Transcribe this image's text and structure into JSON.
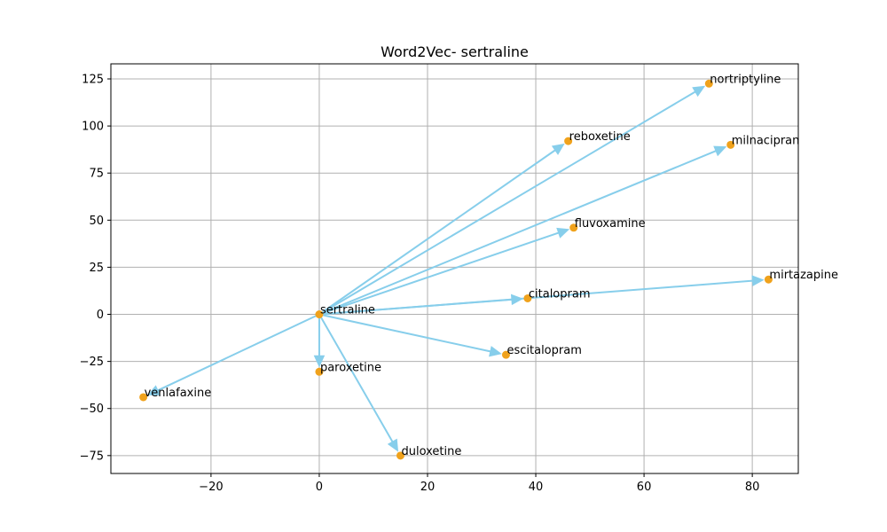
{
  "chart_data": {
    "type": "scatter",
    "title": "Word2Vec- sertraline",
    "xlabel": "",
    "ylabel": "",
    "xlim": [
      -38.5,
      88.5
    ],
    "ylim": [
      -84.5,
      133
    ],
    "xticks": [
      -20,
      0,
      20,
      40,
      60,
      80
    ],
    "yticks": [
      -75,
      -50,
      -25,
      0,
      25,
      50,
      75,
      100,
      125
    ],
    "grid": true,
    "origin": {
      "label": "sertraline",
      "x": 0,
      "y": 0
    },
    "points": [
      {
        "label": "nortriptyline",
        "x": 72,
        "y": 122.5
      },
      {
        "label": "reboxetine",
        "x": 46,
        "y": 92
      },
      {
        "label": "milnacipran",
        "x": 76,
        "y": 90
      },
      {
        "label": "fluvoxamine",
        "x": 47,
        "y": 46
      },
      {
        "label": "mirtazapine",
        "x": 83,
        "y": 18.5
      },
      {
        "label": "citalopram",
        "x": 38.5,
        "y": 8.5
      },
      {
        "label": "escitalopram",
        "x": 34.5,
        "y": -21.5
      },
      {
        "label": "paroxetine",
        "x": 0,
        "y": -30.5
      },
      {
        "label": "venlafaxine",
        "x": -32.5,
        "y": -44
      },
      {
        "label": "duloxetine",
        "x": 15,
        "y": -75
      }
    ],
    "colors": {
      "point": "#f0a21c",
      "arrow": "#87ceeb"
    }
  }
}
